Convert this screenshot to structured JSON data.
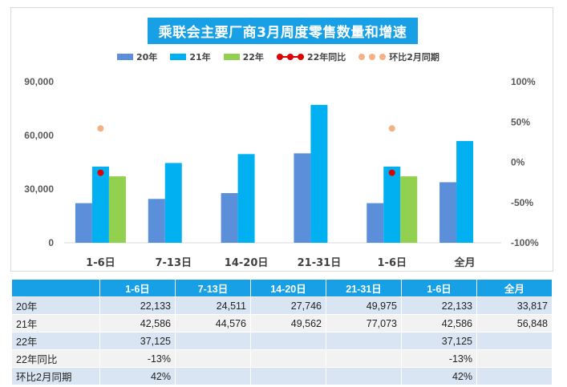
{
  "chart_data": {
    "type": "bar",
    "title": "乘联会主要厂商3月周度零售数量和增速",
    "categories": [
      "1-6日",
      "7-13日",
      "14-20日",
      "21-31日",
      "1-6日",
      "全月"
    ],
    "series": [
      {
        "name": "20年",
        "type": "bar",
        "color": "#5b8fd9",
        "values": [
          22133,
          24511,
          27746,
          49975,
          22133,
          33817
        ]
      },
      {
        "name": "21年",
        "type": "bar",
        "color": "#00b0f0",
        "values": [
          42586,
          44576,
          49562,
          77073,
          42586,
          56848
        ]
      },
      {
        "name": "22年",
        "type": "bar",
        "color": "#92d050",
        "values": [
          37125,
          null,
          null,
          null,
          37125,
          null
        ]
      },
      {
        "name": "22年同比",
        "type": "line",
        "axis": "right",
        "color": "#e00000",
        "values": [
          -13,
          null,
          null,
          null,
          -13,
          null
        ]
      },
      {
        "name": "环比2月同期",
        "type": "line",
        "axis": "right",
        "color": "#f4b183",
        "values": [
          42,
          null,
          null,
          null,
          42,
          null
        ]
      }
    ],
    "left_axis": {
      "ylim": [
        0,
        90000
      ],
      "ticks": [
        "0",
        "30,000",
        "60,000",
        "90,000"
      ],
      "tick_values": [
        0,
        30000,
        60000,
        90000
      ]
    },
    "right_axis": {
      "ylim": [
        -100,
        100
      ],
      "ticks": [
        "-100%",
        "-50%",
        "0%",
        "50%",
        "100%"
      ],
      "tick_values": [
        -100,
        -50,
        0,
        50,
        100
      ]
    },
    "legend_position": "top"
  },
  "table": {
    "header": [
      "",
      "1-6日",
      "7-13日",
      "14-20日",
      "21-31日",
      "1-6日",
      "全月"
    ],
    "rows": [
      {
        "label": "20年",
        "cells": [
          "22,133",
          "24,511",
          "27,746",
          "49,975",
          "22,133",
          "33,817"
        ]
      },
      {
        "label": "21年",
        "cells": [
          "42,586",
          "44,576",
          "49,562",
          "77,073",
          "42,586",
          "56,848"
        ]
      },
      {
        "label": "22年",
        "cells": [
          "37,125",
          "",
          "",
          "",
          "37,125",
          ""
        ]
      },
      {
        "label": "22年同比",
        "cells": [
          "-13%",
          "",
          "",
          "",
          "-13%",
          ""
        ]
      },
      {
        "label": "环比2月同期",
        "cells": [
          "42%",
          "",
          "",
          "",
          "42%",
          ""
        ]
      }
    ]
  }
}
